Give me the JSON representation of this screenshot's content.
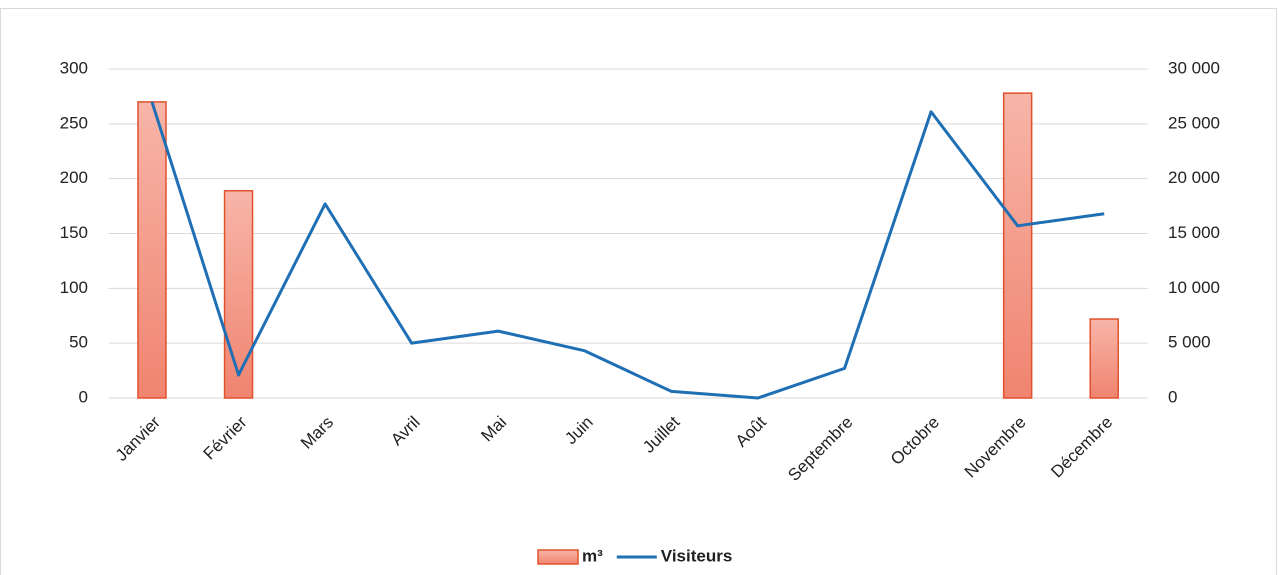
{
  "chart_data": {
    "type": "bar-line",
    "categories": [
      "Janvier",
      "Février",
      "Mars",
      "Avril",
      "Mai",
      "Juin",
      "Juillet",
      "Août",
      "Septembre",
      "Octobre",
      "Novembre",
      "Décembre"
    ],
    "series": [
      {
        "name": "m³",
        "type": "bar",
        "color": "#f39483",
        "values": [
          270,
          189,
          null,
          null,
          null,
          null,
          null,
          null,
          null,
          null,
          278,
          72
        ]
      },
      {
        "name": "Visiteurs",
        "type": "line",
        "axis": "y2",
        "color": "#1f6fb5",
        "values": [
          27000,
          2100,
          17700,
          5000,
          6100,
          4300,
          600,
          0,
          2700,
          26100,
          15700,
          16800
        ]
      }
    ],
    "ylim": [
      0,
      300
    ],
    "yticks": [
      0,
      50,
      100,
      150,
      200,
      250,
      300
    ],
    "y2lim": [
      0,
      30000
    ],
    "y2ticks": [
      0,
      {
        "value": 5000,
        "label": "5 000"
      },
      {
        "value": 10000,
        "label": "10 000"
      },
      {
        "value": 15000,
        "label": "15 000"
      },
      {
        "value": 20000,
        "label": "20 000"
      },
      {
        "value": 25000,
        "label": "25 000"
      },
      {
        "value": 30000,
        "label": "30 000"
      }
    ],
    "grid": true,
    "legend": "bottom"
  }
}
